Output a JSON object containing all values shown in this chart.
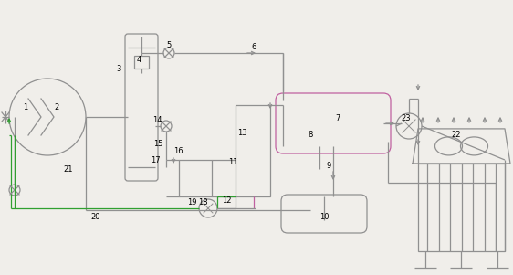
{
  "bg_color": "#f0eeea",
  "lc": "#909090",
  "lc2": "#c060a0",
  "lc4": "#30a030",
  "figsize": [
    5.62,
    3.01
  ],
  "dpi": 100
}
